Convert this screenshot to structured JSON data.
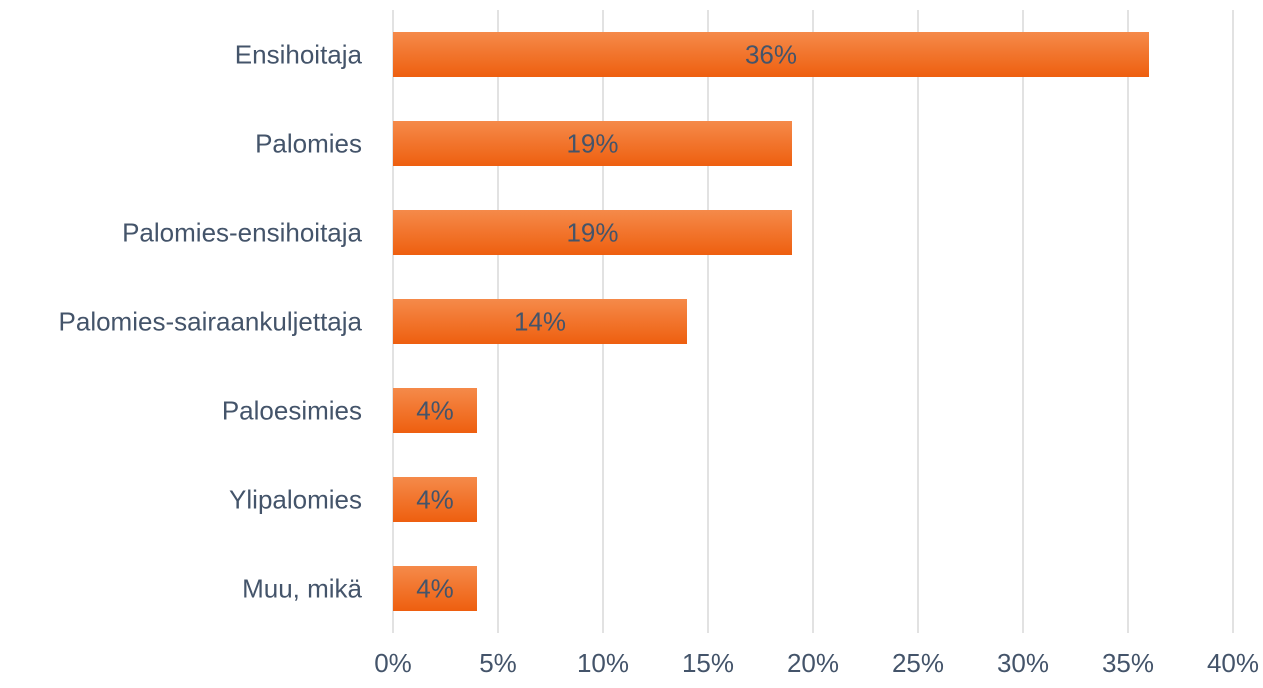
{
  "chart_data": {
    "type": "bar",
    "orientation": "horizontal",
    "categories": [
      "Ensihoitaja",
      "Palomies",
      "Palomies-ensihoitaja",
      "Palomies-sairaankuljettaja",
      "Paloesimies",
      "Ylipalomies",
      "Muu, mikä"
    ],
    "values": [
      36,
      19,
      19,
      14,
      4,
      4,
      4
    ],
    "data_labels": [
      "36%",
      "19%",
      "19%",
      "14%",
      "4%",
      "4%",
      "4%"
    ],
    "xlim": [
      0,
      40
    ],
    "x_ticks": [
      0,
      5,
      10,
      15,
      20,
      25,
      30,
      35,
      40
    ],
    "x_tick_labels": [
      "0%",
      "5%",
      "10%",
      "15%",
      "20%",
      "25%",
      "30%",
      "35%",
      "40%"
    ],
    "grid": true,
    "legend": "none",
    "title": "",
    "xlabel": "",
    "ylabel": "",
    "colors": {
      "bar_top": "#f58a4a",
      "bar_bottom": "#ee5f0f",
      "text": "#44546a",
      "grid": "#d9d9d9"
    }
  }
}
